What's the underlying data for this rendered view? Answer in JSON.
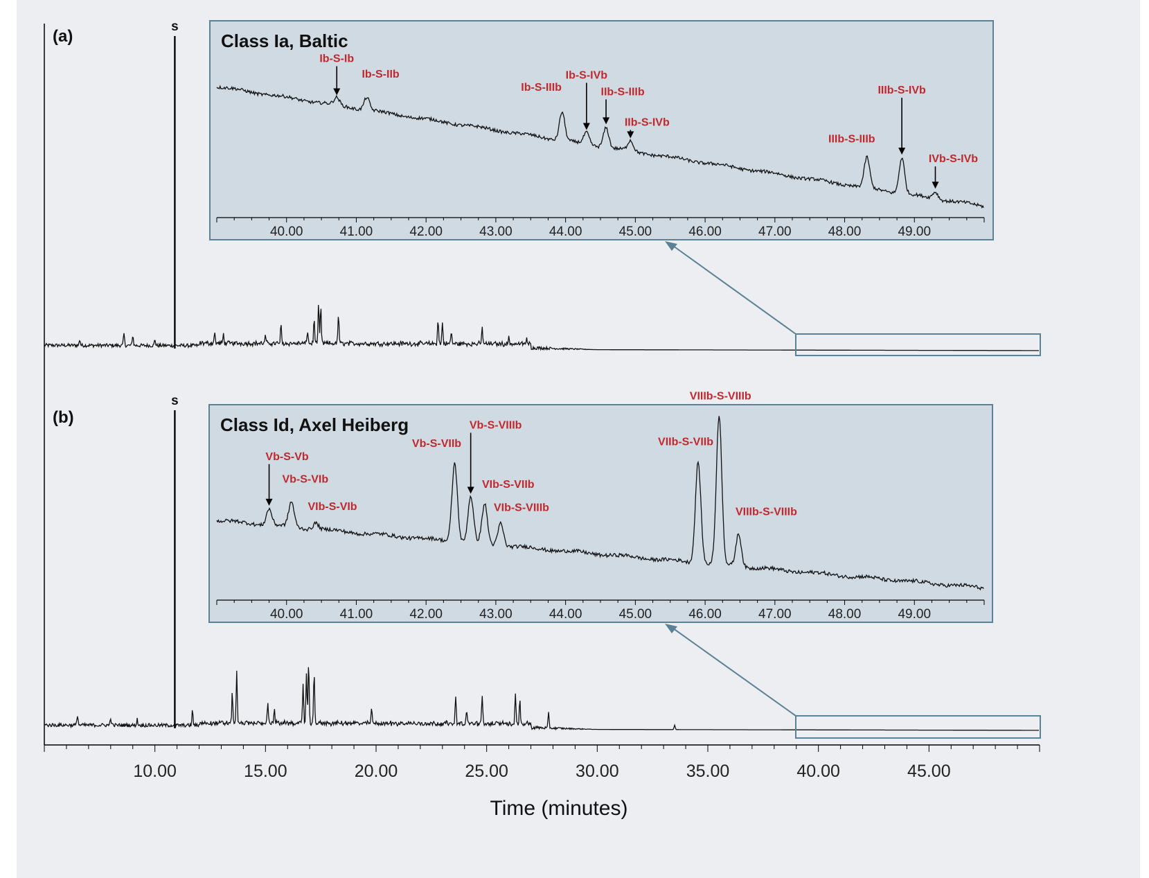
{
  "chart_data": {
    "type": "line",
    "xlabel": "Time (minutes)",
    "xlim": [
      5,
      50
    ],
    "x_ticks": [
      "10.00",
      "15.00",
      "20.00",
      "25.00",
      "30.00",
      "35.00",
      "40.00",
      "45.00"
    ],
    "standard_label": "s",
    "panels": [
      {
        "id": "a",
        "panel_label": "(a)",
        "standard_peak_x": 10.9,
        "major_peaks": [
          {
            "x": 6.6,
            "h": 0.02
          },
          {
            "x": 8.6,
            "h": 0.04
          },
          {
            "x": 9.0,
            "h": 0.035
          },
          {
            "x": 10.0,
            "h": 0.02
          },
          {
            "x": 12.7,
            "h": 0.035
          },
          {
            "x": 13.1,
            "h": 0.03
          },
          {
            "x": 15.0,
            "h": 0.025
          },
          {
            "x": 15.7,
            "h": 0.06
          },
          {
            "x": 16.9,
            "h": 0.045
          },
          {
            "x": 17.2,
            "h": 0.08
          },
          {
            "x": 17.4,
            "h": 0.13
          },
          {
            "x": 17.5,
            "h": 0.12
          },
          {
            "x": 18.3,
            "h": 0.1
          },
          {
            "x": 22.8,
            "h": 0.08
          },
          {
            "x": 23.0,
            "h": 0.07
          },
          {
            "x": 23.4,
            "h": 0.04
          },
          {
            "x": 24.8,
            "h": 0.055
          },
          {
            "x": 26.0,
            "h": 0.02
          },
          {
            "x": 26.8,
            "h": 0.015
          }
        ],
        "inset": {
          "title": "Class Ia, Baltic",
          "xlim": [
            39.0,
            50.0
          ],
          "x_ticks": [
            "40.00",
            "41.00",
            "42.00",
            "43.00",
            "44.00",
            "45.00",
            "46.00",
            "47.00",
            "48.00",
            "49.00"
          ],
          "baseline_start": 0.88,
          "baseline_end": 0.05,
          "peaks": [
            {
              "label": "Ib-S-Ib",
              "x": 40.72,
              "height": 0.05,
              "arrow": true
            },
            {
              "label": "Ib-S-IIb",
              "x": 41.15,
              "height": 0.09,
              "arrow": false
            },
            {
              "label": "Ib-S-IIIb",
              "x": 43.95,
              "height": 0.2,
              "arrow": false
            },
            {
              "label": "Ib-S-IVb",
              "x": 44.3,
              "height": 0.08,
              "arrow": true
            },
            {
              "label": "IIb-S-IIIb",
              "x": 44.58,
              "height": 0.14,
              "arrow": true
            },
            {
              "label": "IIb-S-IVb",
              "x": 44.93,
              "height": 0.07,
              "arrow": true
            },
            {
              "label": "IIIb-S-IIIb",
              "x": 48.32,
              "height": 0.21,
              "arrow": false
            },
            {
              "label": "IIIb-S-IVb",
              "x": 48.82,
              "height": 0.25,
              "arrow": true
            },
            {
              "label": "IVb-S-IVb",
              "x": 49.3,
              "height": 0.05,
              "arrow": true
            }
          ]
        }
      },
      {
        "id": "b",
        "panel_label": "(b)",
        "standard_peak_x": 10.9,
        "major_peaks": [
          {
            "x": 6.5,
            "h": 0.035
          },
          {
            "x": 8.0,
            "h": 0.025
          },
          {
            "x": 9.2,
            "h": 0.02
          },
          {
            "x": 11.7,
            "h": 0.05
          },
          {
            "x": 13.5,
            "h": 0.1
          },
          {
            "x": 13.7,
            "h": 0.17
          },
          {
            "x": 15.1,
            "h": 0.07
          },
          {
            "x": 15.4,
            "h": 0.05
          },
          {
            "x": 16.7,
            "h": 0.13
          },
          {
            "x": 16.85,
            "h": 0.17
          },
          {
            "x": 16.95,
            "h": 0.2
          },
          {
            "x": 17.2,
            "h": 0.17
          },
          {
            "x": 19.8,
            "h": 0.05
          },
          {
            "x": 23.6,
            "h": 0.09
          },
          {
            "x": 24.1,
            "h": 0.04
          },
          {
            "x": 24.8,
            "h": 0.09
          },
          {
            "x": 26.3,
            "h": 0.1
          },
          {
            "x": 26.5,
            "h": 0.08
          },
          {
            "x": 27.8,
            "h": 0.05
          },
          {
            "x": 33.5,
            "h": 0.015
          }
        ],
        "inset": {
          "title": "Class Id, Axel Heiberg",
          "xlim": [
            39.0,
            50.0
          ],
          "x_ticks": [
            "40.00",
            "41.00",
            "42.00",
            "43.00",
            "44.00",
            "45.00",
            "46.00",
            "47.00",
            "48.00",
            "49.00"
          ],
          "baseline_start": 0.45,
          "baseline_end": 0.04,
          "peaks": [
            {
              "label": "Vb-S-Vb",
              "x": 39.75,
              "height": 0.1,
              "arrow": true
            },
            {
              "label": "Vb-S-VIb",
              "x": 40.07,
              "height": 0.15,
              "arrow": false
            },
            {
              "label": "VIb-S-VIb",
              "x": 40.42,
              "height": 0.04,
              "arrow": false
            },
            {
              "label": "Vb-S-VIIb",
              "x": 42.41,
              "height": 0.48,
              "arrow": false
            },
            {
              "label": "Vb-S-VIIIb",
              "x": 42.64,
              "height": 0.28,
              "arrow": true
            },
            {
              "label": "VIb-S-VIIb",
              "x": 42.84,
              "height": 0.24,
              "arrow": false
            },
            {
              "label": "VIb-S-VIIIb",
              "x": 43.07,
              "height": 0.14,
              "arrow": false
            },
            {
              "label": "VIIb-S-VIIb",
              "x": 45.9,
              "height": 0.62,
              "arrow": false
            },
            {
              "label": "VIIIb-S-VIIIb",
              "x": 46.2,
              "height": 0.9,
              "arrow": false
            },
            {
              "label": "VIIIb-S-VIIIb",
              "x": 46.48,
              "height": 0.2,
              "arrow": false
            }
          ]
        }
      }
    ]
  }
}
